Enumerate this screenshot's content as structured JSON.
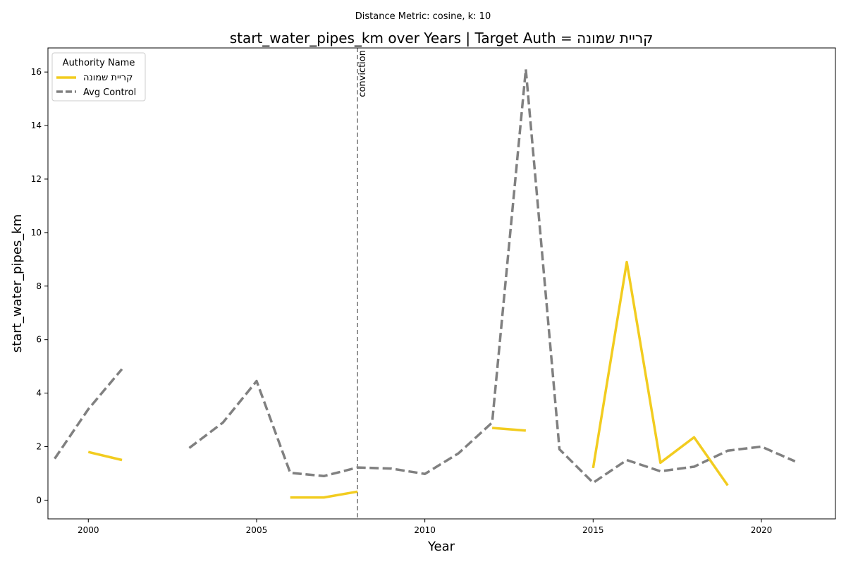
{
  "chart_data": {
    "type": "line",
    "suptitle": "Distance Metric: cosine, k: 10",
    "title": "start_water_pipes_km over Years | Target Auth = קריית שמונה",
    "xlabel": "Year",
    "ylabel": "start_water_pipes_km",
    "xlim": [
      1998.8,
      2022.2
    ],
    "ylim": [
      -0.7,
      16.9
    ],
    "xticks": [
      2000,
      2005,
      2010,
      2015,
      2020
    ],
    "yticks": [
      0,
      2,
      4,
      6,
      8,
      10,
      12,
      14,
      16
    ],
    "grid": false,
    "legend": {
      "title": "Authority Name",
      "placement": "upper-left"
    },
    "series": [
      {
        "name": "קריית שמונה",
        "color": "#f2cc1f",
        "style": "solid",
        "points": [
          [
            1999,
            null
          ],
          [
            2000,
            1.8
          ],
          [
            2001,
            1.5
          ],
          [
            2002,
            null
          ],
          [
            2003,
            null
          ],
          [
            2004,
            null
          ],
          [
            2005,
            null
          ],
          [
            2006,
            0.1
          ],
          [
            2007,
            0.1
          ],
          [
            2008,
            0.32
          ],
          [
            2009,
            null
          ],
          [
            2010,
            null
          ],
          [
            2011,
            null
          ],
          [
            2012,
            2.7
          ],
          [
            2013,
            2.6
          ],
          [
            2014,
            null
          ],
          [
            2015,
            1.2
          ],
          [
            2016,
            8.9
          ],
          [
            2017,
            1.4
          ],
          [
            2018,
            2.35
          ],
          [
            2019,
            0.55
          ],
          [
            2020,
            null
          ],
          [
            2021,
            null
          ]
        ]
      },
      {
        "name": "Avg Control",
        "color": "#808080",
        "style": "dashed",
        "points": [
          [
            1999,
            1.55
          ],
          [
            2000,
            3.4
          ],
          [
            2001,
            4.9
          ],
          [
            2002,
            null
          ],
          [
            2003,
            1.95
          ],
          [
            2004,
            2.9
          ],
          [
            2005,
            4.45
          ],
          [
            2006,
            1.02
          ],
          [
            2007,
            0.9
          ],
          [
            2008,
            1.22
          ],
          [
            2009,
            1.18
          ],
          [
            2010,
            0.98
          ],
          [
            2011,
            1.75
          ],
          [
            2012,
            2.9
          ],
          [
            2013,
            16.1
          ],
          [
            2014,
            1.9
          ],
          [
            2015,
            0.65
          ],
          [
            2016,
            1.5
          ],
          [
            2017,
            1.08
          ],
          [
            2018,
            1.25
          ],
          [
            2019,
            1.85
          ],
          [
            2020,
            2.0
          ],
          [
            2021,
            1.45
          ]
        ]
      }
    ],
    "annotations": [
      {
        "type": "vline",
        "x": 2008,
        "label": "conviction",
        "color": "#808080",
        "style": "dashed"
      }
    ]
  }
}
